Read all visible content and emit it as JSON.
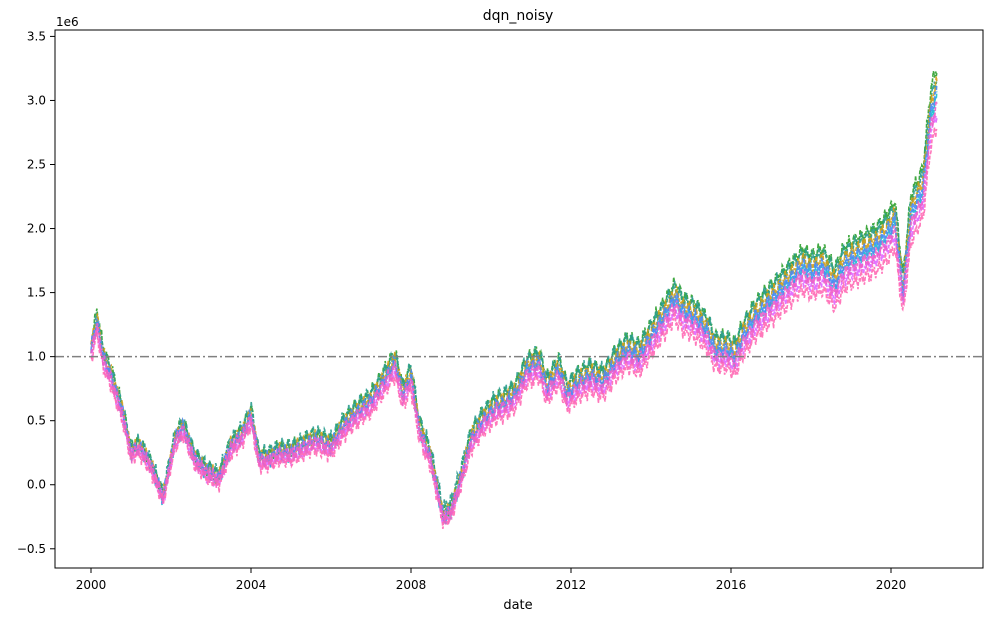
{
  "chart_data": {
    "type": "line",
    "title": "dqn_noisy",
    "xlabel": "date",
    "ylabel": "",
    "y_offset_label": "1e6",
    "xlim": [
      1999.1,
      2022.3
    ],
    "ylim": [
      -0.65,
      3.55
    ],
    "x_ticks": [
      2000,
      2004,
      2008,
      2012,
      2016,
      2020
    ],
    "x_tick_labels": [
      "2000",
      "2004",
      "2008",
      "2012",
      "2016",
      "2020"
    ],
    "y_ticks": [
      -0.5,
      0.0,
      0.5,
      1.0,
      1.5,
      2.0,
      2.5,
      3.0,
      3.5
    ],
    "y_tick_labels": [
      "−0.5",
      "0.0",
      "0.5",
      "1.0",
      "1.5",
      "2.0",
      "2.5",
      "3.0",
      "3.5"
    ],
    "reference_line": {
      "y": 1.0,
      "color": "#808080",
      "style": "dash-dot"
    },
    "base_path": {
      "x": [
        2000.0,
        2000.15,
        2000.3,
        2000.5,
        2000.8,
        2001.0,
        2001.2,
        2001.5,
        2001.8,
        2002.1,
        2002.3,
        2002.6,
        2002.9,
        2003.2,
        2003.5,
        2003.8,
        2004.0,
        2004.2,
        2004.4,
        2004.7,
        2005.0,
        2005.3,
        2005.6,
        2006.0,
        2006.3,
        2006.6,
        2007.0,
        2007.3,
        2007.6,
        2007.8,
        2008.0,
        2008.2,
        2008.5,
        2008.8,
        2009.0,
        2009.2,
        2009.5,
        2009.8,
        2010.1,
        2010.4,
        2010.6,
        2010.9,
        2011.2,
        2011.4,
        2011.7,
        2011.9,
        2012.2,
        2012.5,
        2012.8,
        2013.1,
        2013.4,
        2013.7,
        2014.0,
        2014.3,
        2014.6,
        2014.8,
        2015.1,
        2015.4,
        2015.6,
        2015.9,
        2016.1,
        2016.3,
        2016.6,
        2016.9,
        2017.2,
        2017.5,
        2017.8,
        2018.0,
        2018.3,
        2018.6,
        2018.8,
        2019.0,
        2019.3,
        2019.6,
        2019.9,
        2020.1,
        2020.3,
        2020.5,
        2020.8,
        2021.0,
        2021.15
      ],
      "y": [
        1.05,
        1.28,
        1.0,
        0.85,
        0.55,
        0.25,
        0.3,
        0.15,
        -0.1,
        0.35,
        0.45,
        0.2,
        0.1,
        0.05,
        0.3,
        0.4,
        0.55,
        0.2,
        0.2,
        0.25,
        0.25,
        0.3,
        0.35,
        0.3,
        0.45,
        0.55,
        0.65,
        0.8,
        0.95,
        0.7,
        0.85,
        0.45,
        0.2,
        -0.25,
        -0.2,
        0.0,
        0.35,
        0.5,
        0.6,
        0.65,
        0.7,
        0.9,
        0.95,
        0.75,
        0.9,
        0.7,
        0.8,
        0.85,
        0.8,
        0.95,
        1.05,
        1.0,
        1.15,
        1.3,
        1.45,
        1.35,
        1.3,
        1.2,
        1.05,
        1.05,
        1.0,
        1.15,
        1.3,
        1.4,
        1.5,
        1.6,
        1.7,
        1.65,
        1.7,
        1.55,
        1.7,
        1.75,
        1.8,
        1.85,
        1.95,
        2.05,
        1.5,
        2.1,
        2.3,
        2.9,
        3.05
      ]
    },
    "series": [
      {
        "color": "#2ca02c",
        "offset": 0.06,
        "scale": 1.05
      },
      {
        "color": "#17becf",
        "offset": -0.02,
        "scale": 1.0
      },
      {
        "color": "#2a9d8f",
        "offset": 0.12,
        "scale": 1.0
      },
      {
        "color": "#d4a017",
        "offset": 0.03,
        "scale": 1.02
      },
      {
        "color": "#e066ff",
        "offset": -0.05,
        "scale": 0.97
      },
      {
        "color": "#4c8bf5",
        "offset": 0.0,
        "scale": 1.01
      },
      {
        "color": "#ff69b4",
        "offset": -0.1,
        "scale": 0.95
      },
      {
        "color": "#ee5fc7",
        "offset": -0.03,
        "scale": 0.98
      }
    ]
  }
}
